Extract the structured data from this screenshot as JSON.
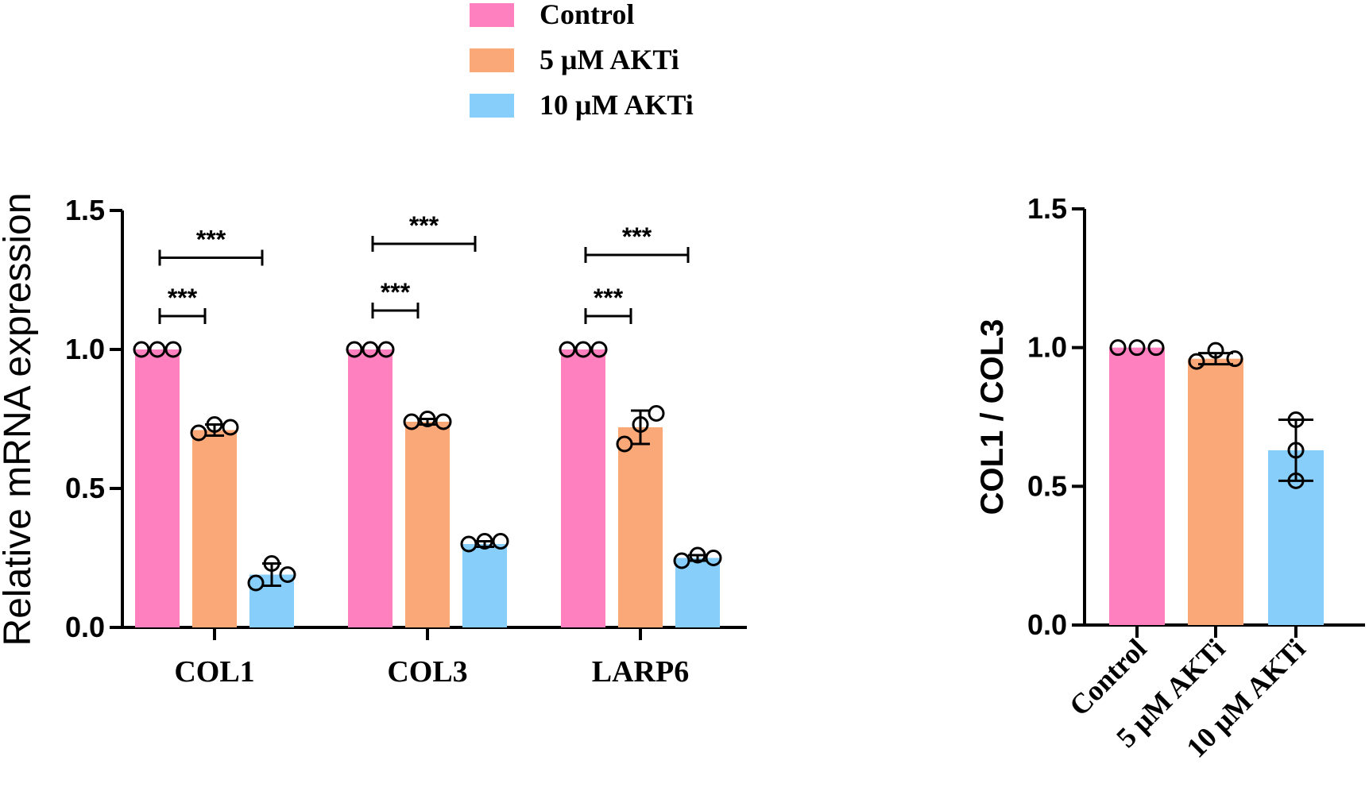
{
  "legend": [
    {
      "label": "Control",
      "color": "#ff80bf"
    },
    {
      "label": "5 μM AKTi",
      "color": "#fba878"
    },
    {
      "label": "10 μM AKTi",
      "color": "#87cefa"
    }
  ],
  "chart_data": [
    {
      "type": "bar",
      "title": "",
      "xlabel": "",
      "ylabel": "Relative mRNA expression",
      "ylim": [
        0,
        1.5
      ],
      "yticks": [
        "0.0",
        "0.5",
        "1.0",
        "1.5"
      ],
      "categories": [
        "COL1",
        "COL3",
        "LARP6"
      ],
      "series": [
        {
          "name": "Control",
          "color": "#ff80bf",
          "values": [
            1.0,
            1.0,
            1.0
          ],
          "err": [
            0,
            0,
            0
          ],
          "points": [
            [
              1.0,
              1.0,
              1.0
            ],
            [
              1.0,
              1.0,
              1.0
            ],
            [
              1.0,
              1.0,
              1.0
            ]
          ]
        },
        {
          "name": "5 μM AKTi",
          "color": "#fba878",
          "values": [
            0.71,
            0.74,
            0.72
          ],
          "err": [
            0.02,
            0.01,
            0.06
          ],
          "points": [
            [
              0.7,
              0.73,
              0.72
            ],
            [
              0.74,
              0.75,
              0.74
            ],
            [
              0.66,
              0.73,
              0.77
            ]
          ]
        },
        {
          "name": "10 μM AKTi",
          "color": "#87cefa",
          "values": [
            0.19,
            0.3,
            0.25
          ],
          "err": [
            0.04,
            0.01,
            0.01
          ],
          "points": [
            [
              0.16,
              0.23,
              0.19
            ],
            [
              0.3,
              0.31,
              0.31
            ],
            [
              0.24,
              0.26,
              0.25
            ]
          ]
        }
      ],
      "significance": [
        {
          "category": 0,
          "from": 0,
          "to": 1,
          "y": 1.12,
          "label": "***"
        },
        {
          "category": 0,
          "from": 0,
          "to": 2,
          "y": 1.33,
          "label": "***"
        },
        {
          "category": 1,
          "from": 0,
          "to": 1,
          "y": 1.14,
          "label": "***"
        },
        {
          "category": 1,
          "from": 0,
          "to": 2,
          "y": 1.38,
          "label": "***"
        },
        {
          "category": 2,
          "from": 0,
          "to": 1,
          "y": 1.12,
          "label": "***"
        },
        {
          "category": 2,
          "from": 0,
          "to": 2,
          "y": 1.34,
          "label": "***"
        }
      ]
    },
    {
      "type": "bar",
      "title": "",
      "xlabel": "",
      "ylabel": "COL1 / COL3",
      "ylim": [
        0,
        1.5
      ],
      "yticks": [
        "0.0",
        "0.5",
        "1.0",
        "1.5"
      ],
      "categories": [
        "Control",
        "5 μM AKTi",
        "10 μM AKTi"
      ],
      "colors": [
        "#ff80bf",
        "#fba878",
        "#87cefa"
      ],
      "values": [
        1.0,
        0.96,
        0.63
      ],
      "err": [
        0,
        0.02,
        0.11
      ],
      "points": [
        [
          1.0,
          1.0,
          1.0
        ],
        [
          0.95,
          0.99,
          0.96
        ],
        [
          0.52,
          0.63,
          0.74
        ]
      ]
    }
  ]
}
